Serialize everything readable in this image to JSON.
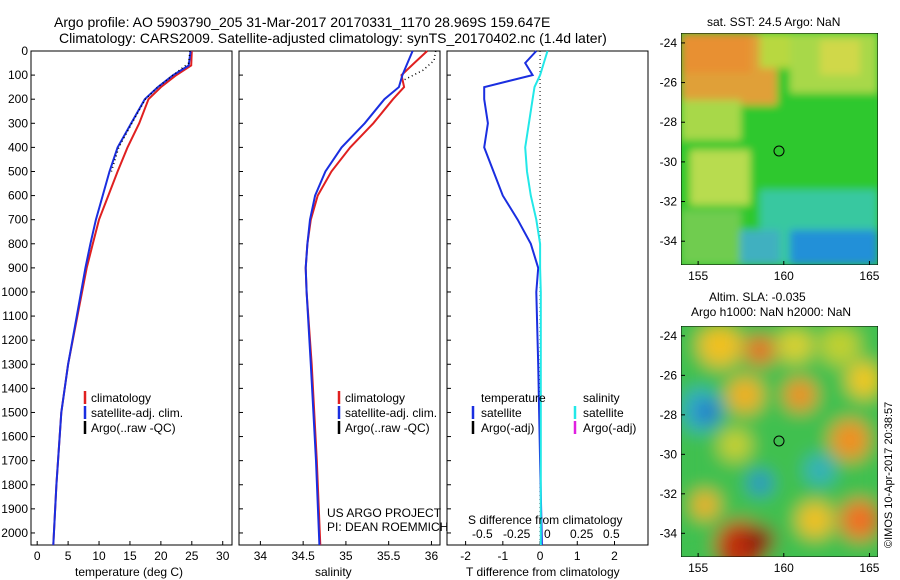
{
  "header": {
    "line1": "Argo profile: AO 5903790_205 31-Mar-2017 20170331_1170 28.969S 159.647E",
    "line2": "Climatology: CARS2009. Satellite-adjusted climatology: synTS_20170402.nc (1.4d later)"
  },
  "side_label": "©IMOS 10-Apr-2017 20:38:57",
  "colors": {
    "climatology": "#e02020",
    "satellite": "#1a2ee0",
    "argo": "#000000",
    "sal_satellite": "#22e8e8",
    "sal_argo": "#e020e0"
  },
  "chart_data": [
    {
      "type": "line",
      "id": "temperature",
      "xlabel": "temperature (deg C)",
      "xlim": [
        -1,
        31.5
      ],
      "ylim": [
        2050,
        0
      ],
      "xticks": [
        0,
        5,
        10,
        15,
        20,
        25,
        30
      ],
      "yticks": [
        0,
        100,
        200,
        300,
        400,
        500,
        600,
        700,
        800,
        900,
        1000,
        1100,
        1200,
        1300,
        1400,
        1500,
        1600,
        1700,
        1800,
        1900,
        2000
      ],
      "legend": [
        "climatology",
        "satellite-adj. clim.",
        "Argo(..raw -QC)"
      ],
      "series": [
        {
          "name": "climatology",
          "style": "solid",
          "x": [
            25,
            24.9,
            22.5,
            20,
            18,
            16.5,
            14.6,
            13,
            11.5,
            10,
            9,
            8,
            6.5,
            5,
            3.9,
            3.1,
            2.6
          ],
          "y": [
            0,
            60,
            100,
            150,
            200,
            300,
            400,
            500,
            600,
            700,
            800,
            900,
            1100,
            1300,
            1500,
            1800,
            2050
          ]
        },
        {
          "name": "satellite-adj. clim.",
          "style": "solid",
          "x": [
            24.8,
            24.5,
            22,
            19.5,
            17.4,
            15.2,
            13,
            11.7,
            10.6,
            9.5,
            8.6,
            7.8,
            6.4,
            5,
            3.9,
            3.1,
            2.6
          ],
          "y": [
            0,
            60,
            100,
            150,
            200,
            300,
            400,
            500,
            600,
            700,
            800,
            900,
            1100,
            1300,
            1500,
            1800,
            2050
          ]
        },
        {
          "name": "Argo(..raw -QC)",
          "style": "dotted",
          "x": [
            24.7,
            24.5,
            22,
            19.5,
            17.5,
            15.3,
            13.2,
            12
          ],
          "y": [
            0,
            50,
            100,
            150,
            200,
            300,
            400,
            500
          ]
        }
      ]
    },
    {
      "type": "line",
      "id": "salinity",
      "xlabel": "salinity",
      "xlim": [
        33.75,
        36.1
      ],
      "ylim": [
        2050,
        0
      ],
      "xticks": [
        34,
        34.5,
        35,
        35.5,
        36
      ],
      "legend": [
        "climatology",
        "satellite-adj. clim."
      ],
      "series": [
        {
          "name": "climatology",
          "style": "solid",
          "x": [
            35.95,
            35.8,
            35.65,
            35.68,
            35.55,
            35.32,
            35.05,
            34.83,
            34.67,
            34.59,
            34.55,
            34.53,
            34.54,
            34.6,
            34.66,
            34.7
          ],
          "y": [
            0,
            50,
            100,
            150,
            200,
            300,
            400,
            500,
            600,
            700,
            800,
            900,
            1000,
            1300,
            1700,
            2050
          ]
        },
        {
          "name": "satellite-adj. clim.",
          "style": "solid",
          "x": [
            35.78,
            35.72,
            35.66,
            35.62,
            35.45,
            35.22,
            34.95,
            34.76,
            34.64,
            34.58,
            34.55,
            34.53,
            34.54,
            34.59,
            34.65,
            34.69
          ],
          "y": [
            0,
            50,
            100,
            150,
            200,
            300,
            400,
            500,
            600,
            700,
            800,
            900,
            1000,
            1300,
            1700,
            2050
          ]
        },
        {
          "name": "Argo(..raw -QC)",
          "style": "dotted",
          "x": [
            36.05,
            36.03,
            35.9,
            35.68
          ],
          "y": [
            0,
            40,
            80,
            120
          ]
        }
      ],
      "text": [
        "US ARGO PROJECT",
        "PI: DEAN ROEMMICH"
      ]
    },
    {
      "type": "line",
      "id": "difference",
      "xlabel": "T difference from climatology",
      "xlim": [
        -2.5,
        2.9
      ],
      "ylim": [
        2050,
        0
      ],
      "xticks": [
        -2,
        -1,
        0,
        1,
        2
      ],
      "top_axis_title": "S difference from climatology",
      "top_ticks": [
        "-0.5",
        "-0.25",
        "0",
        "0.25",
        "0.5"
      ],
      "legend_titles": [
        "temperature",
        "salinity"
      ],
      "legend": [
        "satellite",
        "Argo(-adj)",
        "satellite",
        "Argo(-adj)"
      ],
      "series": [
        {
          "name": "temperature satellite",
          "x": [
            -0.1,
            -0.4,
            -0.2,
            -1.5,
            -1.5,
            -1.4,
            -1.5,
            -1.25,
            -1,
            -0.6,
            -0.25,
            -0.05,
            -0.1,
            -0.05,
            0,
            0.05
          ],
          "y": [
            0,
            50,
            100,
            150,
            200,
            300,
            400,
            500,
            600,
            700,
            800,
            900,
            1000,
            1300,
            1700,
            2050
          ]
        },
        {
          "name": "salinity satellite",
          "x": [
            0.2,
            0.1,
            0,
            -0.15,
            -0.2,
            -0.3,
            -0.4,
            -0.35,
            -0.25,
            -0.1,
            0,
            0,
            0.02,
            0.02,
            0.02
          ],
          "y": [
            0,
            50,
            100,
            150,
            200,
            300,
            400,
            500,
            600,
            700,
            800,
            900,
            1000,
            1500,
            2050
          ]
        }
      ]
    },
    {
      "type": "heatmap",
      "id": "sst-map",
      "title": "sat. SST: 24.5 Argo: NaN",
      "xticks": [
        "155",
        "160",
        "165"
      ],
      "yticks": [
        "-24",
        "-26",
        "-28",
        "-30",
        "-32",
        "-34"
      ],
      "xlim": [
        154,
        165.5
      ],
      "ylim": [
        -35.2,
        -23.5
      ],
      "marker": {
        "lon": 159.65,
        "lat": -28.97
      }
    },
    {
      "type": "heatmap",
      "id": "sla-map",
      "title": "Altim. SLA: -0.035",
      "subtitle": "Argo h1000: NaN h2000: NaN",
      "xticks": [
        "155",
        "160",
        "165"
      ],
      "yticks": [
        "-24",
        "-26",
        "-28",
        "-30",
        "-32",
        "-34"
      ],
      "xlim": [
        154,
        165.5
      ],
      "ylim": [
        -35.2,
        -23.5
      ],
      "marker": {
        "lon": 159.65,
        "lat": -28.97
      }
    }
  ]
}
